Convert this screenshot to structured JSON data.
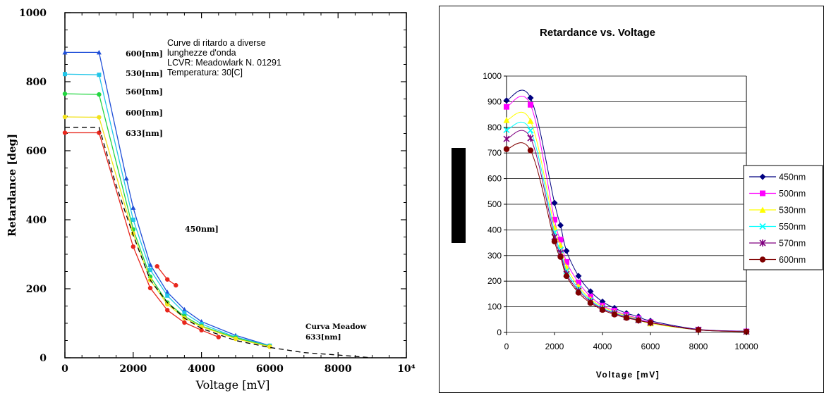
{
  "chart_data": [
    {
      "type": "line",
      "xlabel": "Voltage [mV]",
      "ylabel": "Retardance [deg]",
      "xlim": [
        0,
        10000
      ],
      "ylim": [
        0,
        1000
      ],
      "x_ticks": [
        "0",
        "2000",
        "4000",
        "6000",
        "8000",
        "10⁴"
      ],
      "y_ticks": [
        "0",
        "200",
        "400",
        "600",
        "800",
        "1000"
      ],
      "grid": false,
      "annotation": [
        "Curve di ritardo a diverse",
        "lunghezze d'onda",
        "LCVR: Meadowlark N. 01291",
        "Temperatura: 30[C]"
      ],
      "series": [
        {
          "name": "600[nm]",
          "color": "#1f4fd8",
          "marker": "triangle",
          "x": [
            0,
            1000,
            1800,
            2000,
            2500,
            3000,
            3500,
            4000,
            5000,
            6000
          ],
          "y": [
            885,
            885,
            520,
            435,
            270,
            190,
            140,
            105,
            65,
            35
          ]
        },
        {
          "name": "530[nm]",
          "color": "#22c6e8",
          "marker": "square",
          "x": [
            0,
            1000,
            2000,
            2500,
            3000,
            3500,
            4000,
            5000,
            6000
          ],
          "y": [
            822,
            820,
            400,
            255,
            180,
            130,
            98,
            60,
            35
          ]
        },
        {
          "name": "560[nm]",
          "color": "#22d640",
          "marker": "circle",
          "x": [
            0,
            1000,
            2000,
            2500,
            3000,
            3500,
            4000,
            5000,
            6000
          ],
          "y": [
            765,
            763,
            372,
            235,
            160,
            120,
            92,
            58,
            33
          ]
        },
        {
          "name": "600[nm]",
          "color": "#f2e21a",
          "marker": "circle",
          "x": [
            0,
            1000,
            2000,
            2500,
            3000,
            3500,
            4000,
            5000,
            6000
          ],
          "y": [
            698,
            697,
            360,
            225,
            155,
            115,
            90,
            55,
            32
          ]
        },
        {
          "name": "633[nm]",
          "color": "#e8261c",
          "marker": "circle",
          "x": [
            0,
            1000,
            2000,
            2500,
            3000,
            3500,
            4000,
            4500
          ],
          "y": [
            652,
            652,
            322,
            202,
            138,
            102,
            80,
            60
          ]
        },
        {
          "name": "450nm]",
          "color": "#e8261c",
          "marker": "circle",
          "x": [
            2700,
            3000,
            3250
          ],
          "y": [
            265,
            227,
            210
          ]
        },
        {
          "name": "Curva Meadow 633[nm]",
          "color": "#000000",
          "dash": "dashed",
          "x": [
            0,
            1000,
            1500,
            2000,
            2500,
            3000,
            3500,
            4000,
            5000,
            6000,
            7000,
            8000,
            9000
          ],
          "y": [
            668,
            668,
            500,
            355,
            225,
            160,
            115,
            85,
            50,
            30,
            15,
            8,
            0
          ]
        }
      ]
    },
    {
      "type": "line",
      "title": "Retardance vs. Voltage",
      "xlabel": "Voltage [mV]",
      "ylabel": "",
      "xlim": [
        0,
        10000
      ],
      "ylim": [
        0,
        1000
      ],
      "x_ticks": [
        "0",
        "2000",
        "4000",
        "6000",
        "8000",
        "10000"
      ],
      "y_ticks": [
        "0",
        "100",
        "200",
        "300",
        "400",
        "500",
        "600",
        "700",
        "800",
        "900",
        "1000"
      ],
      "grid": "horizontal",
      "legend": "right",
      "series": [
        {
          "name": "450nm",
          "color": "#000080",
          "marker": "diamond",
          "x": [
            0,
            1000,
            2000,
            2250,
            2500,
            3000,
            3500,
            4000,
            4500,
            5000,
            5500,
            6000,
            8000,
            10000
          ],
          "y": [
            905,
            915,
            505,
            418,
            318,
            220,
            160,
            120,
            95,
            75,
            62,
            45,
            12,
            5
          ]
        },
        {
          "name": "500nm",
          "color": "#ff00ff",
          "marker": "square",
          "x": [
            0,
            1000,
            2000,
            2250,
            2500,
            3000,
            3500,
            4000,
            4500,
            5000,
            5500,
            6000,
            8000,
            10000
          ],
          "y": [
            880,
            888,
            440,
            362,
            275,
            195,
            140,
            105,
            85,
            68,
            55,
            40,
            11,
            4
          ]
        },
        {
          "name": "530nm",
          "color": "#ffff00",
          "marker": "triangle",
          "x": [
            0,
            1000,
            2000,
            2250,
            2500,
            3000,
            3500,
            4000,
            4500,
            5000,
            5500,
            6000,
            8000,
            10000
          ],
          "y": [
            828,
            825,
            410,
            340,
            255,
            180,
            130,
            100,
            80,
            65,
            52,
            35,
            10,
            3
          ]
        },
        {
          "name": "550nm",
          "color": "#00ffff",
          "marker": "x",
          "x": [
            0,
            1000,
            2000,
            2250,
            2500,
            3000,
            3500,
            4000,
            4500,
            5000,
            5500,
            6000,
            8000,
            10000
          ],
          "y": [
            790,
            788,
            390,
            322,
            240,
            170,
            125,
            95,
            76,
            62,
            50,
            38,
            10,
            3
          ]
        },
        {
          "name": "570nm",
          "color": "#800080",
          "marker": "star",
          "x": [
            0,
            1000,
            2000,
            2250,
            2500,
            3000,
            3500,
            4000,
            4500,
            5000,
            5500,
            6000,
            8000,
            10000
          ],
          "y": [
            755,
            758,
            372,
            310,
            228,
            163,
            120,
            92,
            74,
            60,
            48,
            38,
            10,
            3
          ]
        },
        {
          "name": "600nm",
          "color": "#800000",
          "marker": "circle",
          "x": [
            0,
            1000,
            2000,
            2250,
            2500,
            3000,
            3500,
            4000,
            4500,
            5000,
            5500,
            6000,
            8000,
            10000
          ],
          "y": [
            715,
            710,
            355,
            295,
            220,
            155,
            115,
            88,
            70,
            57,
            47,
            38,
            10,
            3
          ]
        }
      ]
    }
  ]
}
